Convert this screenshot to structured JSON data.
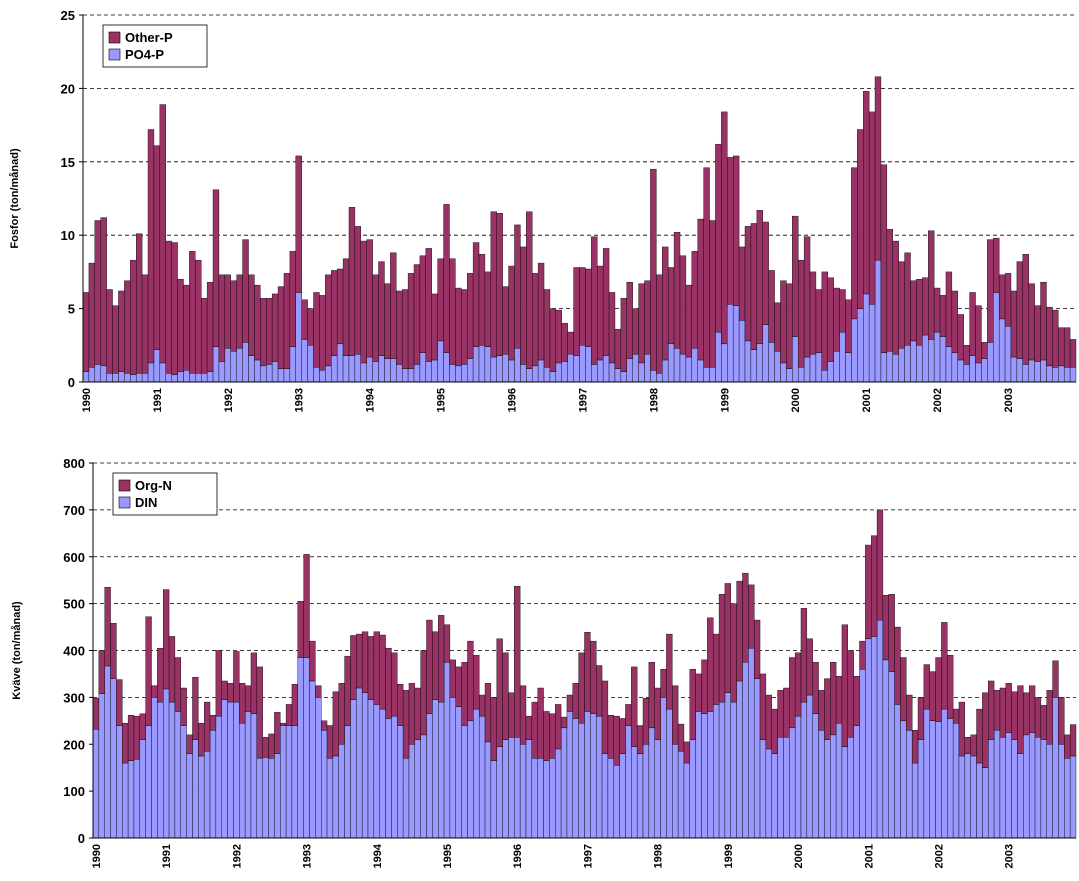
{
  "chart_data": [
    {
      "type": "stacked_bar",
      "ylabel": "Fosfor (ton/månad)",
      "ylim": [
        0,
        25
      ],
      "yticks": [
        0,
        5,
        10,
        15,
        20,
        25
      ],
      "grid": true,
      "legend": "upper left",
      "categories": [
        "1990",
        null,
        null,
        null,
        null,
        null,
        null,
        null,
        null,
        null,
        null,
        null,
        "1991",
        null,
        null,
        null,
        null,
        null,
        null,
        null,
        null,
        null,
        null,
        null,
        "1992",
        null,
        null,
        null,
        null,
        null,
        null,
        null,
        null,
        null,
        null,
        null,
        "1993",
        null,
        null,
        null,
        null,
        null,
        null,
        null,
        null,
        null,
        null,
        null,
        "1994",
        null,
        null,
        null,
        null,
        null,
        null,
        null,
        null,
        null,
        null,
        null,
        "1995",
        null,
        null,
        null,
        null,
        null,
        null,
        null,
        null,
        null,
        null,
        null,
        "1996",
        null,
        null,
        null,
        null,
        null,
        null,
        null,
        null,
        null,
        null,
        null,
        "1997",
        null,
        null,
        null,
        null,
        null,
        null,
        null,
        null,
        null,
        null,
        null,
        "1998",
        null,
        null,
        null,
        null,
        null,
        null,
        null,
        null,
        null,
        null,
        null,
        "1999",
        null,
        null,
        null,
        null,
        null,
        null,
        null,
        null,
        null,
        null,
        null,
        "2000",
        null,
        null,
        null,
        null,
        null,
        null,
        null,
        null,
        null,
        null,
        null,
        "2001",
        null,
        null,
        null,
        null,
        null,
        null,
        null,
        null,
        null,
        null,
        null,
        "2002",
        null,
        null,
        null,
        null,
        null,
        null,
        null,
        null,
        null,
        null,
        null,
        "2003",
        null,
        null,
        null,
        null,
        null,
        null,
        null,
        null,
        null,
        null,
        null
      ],
      "series": [
        {
          "name": "PO4-P",
          "color": "#9999ff",
          "values": [
            0.7,
            1.0,
            1.2,
            1.1,
            0.6,
            0.6,
            0.7,
            0.6,
            0.5,
            0.6,
            0.6,
            1.3,
            2.2,
            1.3,
            0.6,
            0.5,
            0.7,
            0.8,
            0.6,
            0.6,
            0.6,
            0.7,
            2.4,
            1.4,
            2.3,
            2.1,
            2.3,
            2.7,
            1.8,
            1.5,
            1.1,
            1.2,
            1.4,
            0.9,
            0.9,
            2.4,
            6.1,
            2.9,
            2.5,
            1.0,
            0.8,
            1.1,
            1.8,
            2.6,
            1.8,
            1.8,
            1.9,
            1.3,
            1.7,
            1.4,
            1.8,
            1.6,
            1.6,
            1.2,
            0.9,
            0.9,
            1.2,
            2.0,
            1.4,
            1.5,
            2.8,
            2.0,
            1.2,
            1.1,
            1.2,
            1.6,
            2.4,
            2.5,
            2.4,
            1.7,
            1.8,
            1.9,
            1.5,
            2.3,
            1.2,
            0.9,
            1.1,
            1.5,
            1.0,
            0.7,
            1.3,
            1.4,
            1.9,
            1.8,
            2.5,
            2.4,
            1.2,
            1.5,
            1.8,
            1.3,
            0.9,
            0.7,
            1.6,
            1.9,
            1.3,
            1.9,
            0.8,
            0.6,
            1.5,
            2.6,
            2.3,
            1.9,
            1.7,
            2.3,
            1.5,
            1.0,
            1.0,
            3.4,
            2.6,
            5.3,
            5.2,
            4.2,
            2.8,
            2.2,
            2.6,
            3.9,
            2.7,
            2.1,
            1.3,
            0.9,
            3.1,
            1.0,
            1.7,
            1.9,
            2.0,
            0.8,
            1.4,
            2.1,
            3.4,
            2.0,
            4.3,
            5.0,
            6.0,
            5.3,
            8.3,
            2.0,
            2.1,
            1.9,
            2.3,
            2.5,
            2.8,
            2.5,
            3.2,
            2.9,
            3.4,
            3.1,
            2.4,
            2.0,
            1.5,
            1.2,
            1.8,
            1.3,
            1.6,
            2.7,
            6.1,
            4.3,
            3.8,
            1.7,
            1.6,
            1.2,
            1.5,
            1.4,
            1.5,
            1.1,
            1.0,
            1.1,
            1.0,
            1.0
          ]
        },
        {
          "name": "Other-P",
          "color": "#993366",
          "values": [
            5.4,
            7.1,
            9.8,
            10.1,
            5.7,
            4.6,
            5.5,
            6.3,
            7.8,
            9.5,
            6.7,
            15.9,
            13.9,
            17.6,
            9.0,
            9.0,
            6.3,
            5.8,
            8.3,
            7.7,
            5.1,
            6.1,
            10.7,
            5.9,
            5.0,
            4.8,
            5.0,
            7.0,
            5.5,
            5.1,
            4.6,
            4.5,
            4.6,
            5.6,
            6.5,
            6.5,
            9.3,
            2.7,
            2.5,
            5.1,
            5.1,
            6.2,
            5.8,
            5.1,
            6.6,
            10.1,
            8.7,
            8.3,
            8.0,
            5.9,
            6.4,
            5.1,
            7.2,
            5.0,
            5.4,
            6.5,
            6.8,
            6.6,
            7.7,
            4.5,
            5.6,
            10.1,
            7.2,
            5.3,
            5.1,
            5.8,
            7.1,
            6.2,
            5.1,
            9.9,
            9.7,
            4.6,
            6.4,
            8.4,
            8.0,
            10.7,
            6.3,
            6.6,
            5.3,
            4.3,
            3.6,
            2.6,
            1.5,
            6.0,
            5.3,
            5.3,
            8.7,
            6.4,
            7.3,
            4.8,
            2.7,
            5.0,
            5.2,
            3.1,
            5.4,
            5.0,
            13.7,
            6.7,
            7.7,
            5.2,
            7.9,
            6.7,
            4.9,
            6.6,
            9.6,
            13.6,
            10.0,
            12.8,
            15.8,
            10.0,
            10.2,
            5.0,
            7.8,
            8.6,
            9.1,
            7.0,
            4.9,
            3.3,
            5.6,
            5.8,
            8.2,
            7.3,
            8.2,
            5.6,
            4.3,
            6.7,
            5.7,
            4.3,
            2.9,
            3.6,
            10.3,
            12.2,
            13.8,
            13.1,
            12.5,
            12.8,
            8.3,
            7.7,
            5.9,
            6.3,
            4.1,
            4.5,
            3.9,
            7.4,
            3.0,
            2.8,
            5.1,
            4.2,
            3.1,
            1.3,
            4.3,
            3.9,
            1.1,
            7.0,
            3.7,
            3.0,
            3.6,
            4.5,
            6.6,
            7.5,
            5.2,
            3.8,
            5.3,
            4.0,
            3.9,
            2.6,
            2.7,
            1.9
          ]
        }
      ]
    },
    {
      "type": "stacked_bar",
      "ylabel": "Kväve (ton/månad)",
      "ylim": [
        0,
        800
      ],
      "yticks": [
        0,
        100,
        200,
        300,
        400,
        500,
        600,
        700,
        800
      ],
      "grid": true,
      "legend": "upper left",
      "categories": [
        "1990",
        null,
        null,
        null,
        null,
        null,
        null,
        null,
        null,
        null,
        null,
        null,
        "1991",
        null,
        null,
        null,
        null,
        null,
        null,
        null,
        null,
        null,
        null,
        null,
        "1992",
        null,
        null,
        null,
        null,
        null,
        null,
        null,
        null,
        null,
        null,
        null,
        "1993",
        null,
        null,
        null,
        null,
        null,
        null,
        null,
        null,
        null,
        null,
        null,
        "1994",
        null,
        null,
        null,
        null,
        null,
        null,
        null,
        null,
        null,
        null,
        null,
        "1995",
        null,
        null,
        null,
        null,
        null,
        null,
        null,
        null,
        null,
        null,
        null,
        "1996",
        null,
        null,
        null,
        null,
        null,
        null,
        null,
        null,
        null,
        null,
        null,
        "1997",
        null,
        null,
        null,
        null,
        null,
        null,
        null,
        null,
        null,
        null,
        null,
        "1998",
        null,
        null,
        null,
        null,
        null,
        null,
        null,
        null,
        null,
        null,
        null,
        "1999",
        null,
        null,
        null,
        null,
        null,
        null,
        null,
        null,
        null,
        null,
        null,
        "2000",
        null,
        null,
        null,
        null,
        null,
        null,
        null,
        null,
        null,
        null,
        null,
        "2001",
        null,
        null,
        null,
        null,
        null,
        null,
        null,
        null,
        null,
        null,
        null,
        "2002",
        null,
        null,
        null,
        null,
        null,
        null,
        null,
        null,
        null,
        null,
        null,
        "2003",
        null,
        null,
        null,
        null,
        null,
        null,
        null,
        null,
        null,
        null,
        null
      ],
      "series": [
        {
          "name": "DIN",
          "color": "#9999ff",
          "values": [
            232,
            308,
            367,
            340,
            240,
            160,
            165,
            168,
            210,
            240,
            300,
            290,
            318,
            290,
            270,
            240,
            180,
            210,
            175,
            185,
            230,
            260,
            295,
            290,
            290,
            245,
            270,
            265,
            170,
            172,
            170,
            180,
            240,
            240,
            240,
            385,
            385,
            335,
            300,
            230,
            170,
            175,
            200,
            240,
            295,
            320,
            310,
            295,
            285,
            275,
            255,
            260,
            240,
            170,
            200,
            210,
            220,
            265,
            295,
            290,
            375,
            300,
            280,
            240,
            250,
            275,
            260,
            205,
            165,
            195,
            210,
            215,
            215,
            200,
            210,
            170,
            170,
            165,
            170,
            190,
            235,
            270,
            255,
            245,
            270,
            265,
            260,
            180,
            170,
            155,
            180,
            240,
            195,
            180,
            200,
            235,
            210,
            300,
            275,
            200,
            185,
            160,
            210,
            270,
            265,
            270,
            285,
            290,
            310,
            290,
            335,
            375,
            405,
            340,
            210,
            190,
            180,
            215,
            215,
            235,
            260,
            290,
            305,
            265,
            230,
            210,
            220,
            245,
            195,
            215,
            240,
            360,
            425,
            430,
            465,
            380,
            355,
            285,
            250,
            230,
            160,
            210,
            275,
            250,
            248,
            275,
            255,
            245,
            175,
            180,
            175,
            160,
            150,
            210,
            230,
            215,
            225,
            210,
            180,
            220,
            225,
            215,
            210,
            200,
            300,
            200,
            170,
            175
          ]
        },
        {
          "name": "Org-N",
          "color": "#993366",
          "values": [
            66,
            92,
            168,
            118,
            98,
            85,
            97,
            92,
            55,
            232,
            25,
            115,
            212,
            140,
            115,
            80,
            40,
            133,
            70,
            105,
            32,
            140,
            40,
            40,
            108,
            85,
            55,
            130,
            195,
            43,
            52,
            88,
            5,
            45,
            88,
            120,
            220,
            85,
            25,
            20,
            70,
            137,
            130,
            148,
            137,
            115,
            130,
            135,
            155,
            158,
            150,
            135,
            88,
            145,
            130,
            110,
            180,
            200,
            145,
            185,
            80,
            80,
            85,
            135,
            170,
            115,
            45,
            125,
            135,
            230,
            185,
            95,
            322,
            125,
            50,
            120,
            150,
            105,
            95,
            95,
            23,
            35,
            75,
            150,
            169,
            155,
            108,
            155,
            92,
            105,
            75,
            45,
            170,
            60,
            98,
            140,
            110,
            60,
            160,
            125,
            58,
            45,
            150,
            80,
            115,
            200,
            150,
            230,
            233,
            210,
            213,
            190,
            135,
            125,
            140,
            115,
            95,
            100,
            105,
            150,
            135,
            200,
            120,
            110,
            85,
            130,
            155,
            100,
            260,
            185,
            105,
            60,
            200,
            215,
            235,
            138,
            165,
            165,
            135,
            75,
            70,
            90,
            95,
            105,
            137,
            185,
            135,
            30,
            115,
            35,
            45,
            115,
            160,
            125,
            85,
            105,
            105,
            102,
            145,
            90,
            100,
            85,
            73,
            115,
            78,
            100,
            50,
            67
          ]
        }
      ]
    }
  ]
}
